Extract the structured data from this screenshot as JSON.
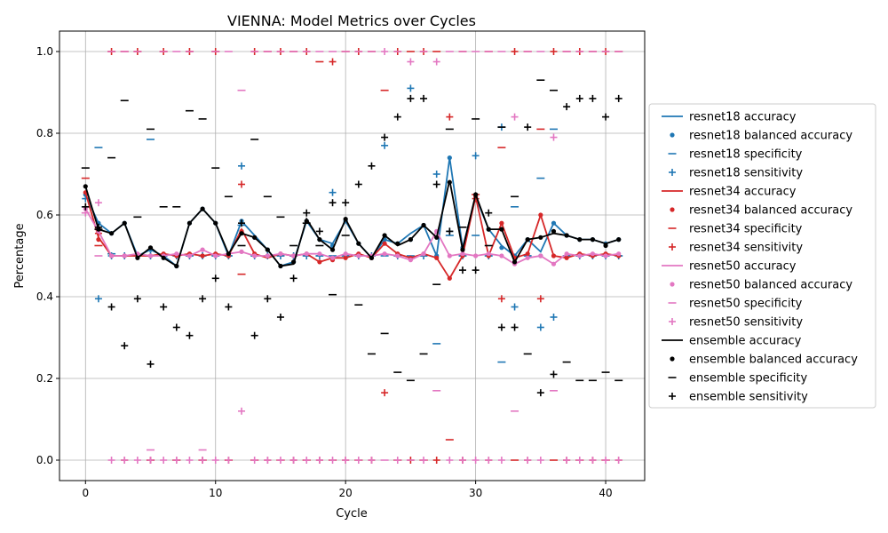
{
  "chart_data": {
    "type": "line",
    "title": "VIENNA: Model Metrics over Cycles",
    "xlabel": "Cycle",
    "ylabel": "Percentage",
    "xlim": [
      -2,
      43
    ],
    "ylim": [
      -0.05,
      1.05
    ],
    "xticks": [
      0,
      10,
      20,
      30,
      40
    ],
    "yticks": [
      0.0,
      0.2,
      0.4,
      0.6,
      0.8,
      1.0
    ],
    "xtick_labels": [
      "0",
      "10",
      "20",
      "30",
      "40"
    ],
    "ytick_labels": [
      "0.0",
      "0.2",
      "0.4",
      "0.6",
      "0.8",
      "1.0"
    ],
    "grid": true,
    "legend_position": "outside-right",
    "x": [
      0,
      1,
      2,
      3,
      4,
      5,
      6,
      7,
      8,
      9,
      10,
      11,
      12,
      13,
      14,
      15,
      16,
      17,
      18,
      19,
      20,
      21,
      22,
      23,
      24,
      25,
      26,
      27,
      28,
      29,
      30,
      31,
      32,
      33,
      34,
      35,
      36,
      37,
      38,
      39,
      40,
      41
    ],
    "models": [
      {
        "color": "#1f77b4",
        "labels": {
          "accuracy": "resnet18 accuracy",
          "balanced_accuracy": "resnet18 balanced accuracy",
          "specificity": "resnet18 specificity",
          "sensitivity": "resnet18 sensitivity"
        },
        "accuracy": [
          0.65,
          0.58,
          0.555,
          0.58,
          0.5,
          0.515,
          0.5,
          0.475,
          0.58,
          0.615,
          0.58,
          0.5,
          0.585,
          0.55,
          0.515,
          0.475,
          0.485,
          0.585,
          0.54,
          0.53,
          0.585,
          0.53,
          0.495,
          0.54,
          0.53,
          0.555,
          0.575,
          0.5,
          0.74,
          0.52,
          0.645,
          0.565,
          0.525,
          0.5,
          0.54,
          0.51,
          0.58,
          0.55,
          0.54,
          0.54,
          0.53,
          0.54
        ],
        "balanced_accuracy": [
          0.65,
          0.58,
          0.555,
          0.58,
          0.5,
          0.515,
          0.5,
          0.475,
          0.58,
          0.615,
          0.58,
          0.5,
          0.585,
          0.545,
          0.515,
          0.475,
          0.485,
          0.585,
          0.54,
          0.525,
          0.585,
          0.53,
          0.495,
          0.54,
          0.53,
          0.54,
          0.575,
          0.5,
          0.74,
          0.52,
          0.645,
          0.565,
          0.52,
          0.5,
          0.54,
          0.5,
          0.58,
          0.55,
          0.54,
          0.54,
          0.53,
          0.54
        ],
        "specificity": [
          0.62,
          0.765,
          0.505,
          0.5,
          0.5,
          0.785,
          0.5,
          0.5,
          0.5,
          0.5,
          0.5,
          0.5,
          0.575,
          0.5,
          0.5,
          0.5,
          0.5,
          0.5,
          0.5,
          0.5,
          0.5,
          0.5,
          0.5,
          0.5,
          0.5,
          0.5,
          0.5,
          0.285,
          0.55,
          0.5,
          0.55,
          0.5,
          0.24,
          0.62,
          0.5,
          0.69,
          0.81,
          0.5,
          0.5,
          0.5,
          0.5,
          0.5
        ],
        "sensitivity": [
          0.64,
          0.395,
          0.5,
          0.5,
          0.5,
          0.5,
          0.5,
          0.5,
          0.5,
          0.5,
          0.5,
          0.5,
          0.72,
          0.5,
          0.5,
          0.5,
          0.5,
          0.5,
          0.5,
          0.655,
          0.5,
          0.5,
          0.5,
          0.77,
          0.5,
          0.91,
          0.5,
          0.7,
          0.56,
          0.5,
          0.745,
          0.5,
          0.815,
          0.375,
          0.5,
          0.325,
          0.35,
          0.5,
          0.5,
          0.5,
          0.5,
          0.5
        ]
      },
      {
        "color": "#d62728",
        "labels": {
          "accuracy": "resnet34 accuracy",
          "balanced_accuracy": "resnet34 balanced accuracy",
          "specificity": "resnet34 specificity",
          "sensitivity": "resnet34 sensitivity"
        },
        "accuracy": [
          0.655,
          0.545,
          0.5,
          0.5,
          0.5,
          0.5,
          0.505,
          0.5,
          0.505,
          0.5,
          0.505,
          0.5,
          0.565,
          0.505,
          0.495,
          0.505,
          0.5,
          0.505,
          0.485,
          0.495,
          0.495,
          0.505,
          0.495,
          0.53,
          0.505,
          0.495,
          0.505,
          0.495,
          0.445,
          0.5,
          0.645,
          0.5,
          0.58,
          0.495,
          0.505,
          0.6,
          0.5,
          0.495,
          0.505,
          0.5,
          0.505,
          0.5
        ],
        "balanced_accuracy": [
          0.655,
          0.54,
          0.5,
          0.5,
          0.5,
          0.5,
          0.505,
          0.5,
          0.505,
          0.5,
          0.505,
          0.5,
          0.56,
          0.505,
          0.5,
          0.505,
          0.5,
          0.505,
          0.485,
          0.49,
          0.495,
          0.505,
          0.495,
          0.53,
          0.505,
          0.495,
          0.505,
          0.495,
          0.445,
          0.5,
          0.645,
          0.5,
          0.58,
          0.495,
          0.505,
          0.6,
          0.5,
          0.495,
          0.505,
          0.5,
          0.505,
          0.5
        ],
        "specificity": [
          0.69,
          0.525,
          1.0,
          1.0,
          1.0,
          0.0,
          1.0,
          0.0,
          1.0,
          0.0,
          1.0,
          0.0,
          0.455,
          0.0,
          1.0,
          0.0,
          1.0,
          0.0,
          0.975,
          0.0,
          1.0,
          0.0,
          1.0,
          0.905,
          0.0,
          1.0,
          0.0,
          1.0,
          0.05,
          1.0,
          0.65,
          1.0,
          0.765,
          0.0,
          1.0,
          0.81,
          0.0,
          1.0,
          0.0,
          1.0,
          0.0,
          1.0
        ],
        "sensitivity": [
          0.62,
          0.555,
          1.0,
          0.0,
          1.0,
          0.0,
          1.0,
          0.0,
          1.0,
          0.0,
          1.0,
          0.0,
          0.675,
          1.0,
          0.0,
          1.0,
          0.0,
          1.0,
          0.0,
          0.975,
          0.0,
          1.0,
          0.0,
          0.165,
          1.0,
          0.0,
          1.0,
          0.0,
          0.84,
          0.0,
          0.64,
          0.0,
          0.395,
          1.0,
          0.0,
          0.395,
          1.0,
          0.0,
          1.0,
          0.0,
          1.0,
          0.0
        ]
      },
      {
        "color": "#e377c2",
        "labels": {
          "accuracy": "resnet50 accuracy",
          "balanced_accuracy": "resnet50 balanced accuracy",
          "specificity": "resnet50 specificity",
          "sensitivity": "resnet50 sensitivity"
        },
        "accuracy": [
          0.615,
          0.56,
          0.5,
          0.5,
          0.505,
          0.5,
          0.5,
          0.505,
          0.5,
          0.515,
          0.5,
          0.505,
          0.51,
          0.5,
          0.5,
          0.505,
          0.5,
          0.505,
          0.505,
          0.495,
          0.505,
          0.5,
          0.5,
          0.505,
          0.5,
          0.49,
          0.505,
          0.56,
          0.5,
          0.505,
          0.5,
          0.505,
          0.5,
          0.48,
          0.495,
          0.5,
          0.48,
          0.505,
          0.5,
          0.505,
          0.5,
          0.505
        ],
        "balanced_accuracy": [
          0.615,
          0.56,
          0.5,
          0.5,
          0.505,
          0.5,
          0.5,
          0.505,
          0.5,
          0.515,
          0.5,
          0.505,
          0.51,
          0.5,
          0.5,
          0.505,
          0.5,
          0.505,
          0.505,
          0.495,
          0.505,
          0.5,
          0.5,
          0.505,
          0.5,
          0.49,
          0.505,
          0.56,
          0.5,
          0.505,
          0.5,
          0.505,
          0.5,
          0.48,
          0.495,
          0.5,
          0.48,
          0.505,
          0.5,
          0.505,
          0.5,
          0.505
        ],
        "specificity": [
          0.605,
          0.5,
          1.0,
          1.0,
          1.0,
          0.025,
          1.0,
          1.0,
          1.0,
          0.025,
          1.0,
          1.0,
          0.905,
          1.0,
          1.0,
          1.0,
          1.0,
          1.0,
          1.0,
          1.0,
          1.0,
          1.0,
          1.0,
          0.0,
          1.0,
          0.0,
          1.0,
          0.17,
          1.0,
          1.0,
          1.0,
          1.0,
          1.0,
          0.12,
          1.0,
          1.0,
          0.17,
          1.0,
          1.0,
          1.0,
          1.0,
          1.0
        ],
        "sensitivity": [
          0.605,
          0.63,
          0.0,
          0.0,
          0.0,
          0.0,
          0.0,
          0.0,
          0.0,
          0.0,
          0.0,
          0.0,
          0.12,
          0.0,
          0.0,
          0.0,
          0.0,
          0.0,
          0.0,
          0.0,
          0.0,
          0.0,
          0.0,
          1.0,
          0.0,
          0.975,
          0.0,
          0.975,
          0.0,
          0.0,
          0.0,
          0.0,
          0.0,
          0.84,
          0.0,
          0.0,
          0.79,
          0.0,
          0.0,
          0.0,
          0.0,
          0.0
        ]
      },
      {
        "color": "#000000",
        "labels": {
          "accuracy": "ensemble accuracy",
          "balanced_accuracy": "ensemble balanced accuracy",
          "specificity": "ensemble specificity",
          "sensitivity": "ensemble sensitivity"
        },
        "accuracy": [
          0.67,
          0.565,
          0.555,
          0.58,
          0.495,
          0.52,
          0.495,
          0.475,
          0.58,
          0.615,
          0.58,
          0.505,
          0.555,
          0.545,
          0.515,
          0.475,
          0.48,
          0.59,
          0.54,
          0.515,
          0.59,
          0.53,
          0.495,
          0.55,
          0.525,
          0.54,
          0.575,
          0.545,
          0.685,
          0.515,
          0.65,
          0.565,
          0.565,
          0.485,
          0.54,
          0.545,
          0.555,
          0.55,
          0.54,
          0.54,
          0.53,
          0.54
        ],
        "balanced_accuracy": [
          0.67,
          0.565,
          0.555,
          0.58,
          0.495,
          0.52,
          0.495,
          0.475,
          0.58,
          0.615,
          0.58,
          0.505,
          0.555,
          0.545,
          0.515,
          0.475,
          0.485,
          0.585,
          0.54,
          0.515,
          0.59,
          0.53,
          0.495,
          0.55,
          0.53,
          0.54,
          0.575,
          0.545,
          0.68,
          0.515,
          0.65,
          0.565,
          0.565,
          0.485,
          0.54,
          0.545,
          0.56,
          0.55,
          0.54,
          0.54,
          0.525,
          0.54
        ],
        "specificity": [
          0.715,
          0.565,
          0.74,
          0.88,
          0.595,
          0.81,
          0.62,
          0.62,
          0.855,
          0.835,
          0.715,
          0.645,
          0.525,
          0.785,
          0.645,
          0.595,
          0.525,
          0.58,
          0.525,
          0.405,
          0.55,
          0.38,
          0.26,
          0.31,
          0.215,
          0.195,
          0.26,
          0.43,
          0.81,
          0.57,
          0.835,
          0.525,
          0.815,
          0.645,
          0.26,
          0.93,
          0.905,
          0.24,
          0.195,
          0.195,
          0.215,
          0.195
        ],
        "sensitivity": [
          0.62,
          0.57,
          0.375,
          0.28,
          0.395,
          0.235,
          0.375,
          0.325,
          0.305,
          0.395,
          0.445,
          0.375,
          0.58,
          0.305,
          0.395,
          0.35,
          0.445,
          0.605,
          0.56,
          0.63,
          0.63,
          0.675,
          0.72,
          0.79,
          0.84,
          0.885,
          0.885,
          0.675,
          0.56,
          0.465,
          0.465,
          0.605,
          0.325,
          0.325,
          0.815,
          0.165,
          0.21,
          0.865,
          0.885,
          0.885,
          0.84,
          0.885
        ]
      }
    ]
  }
}
